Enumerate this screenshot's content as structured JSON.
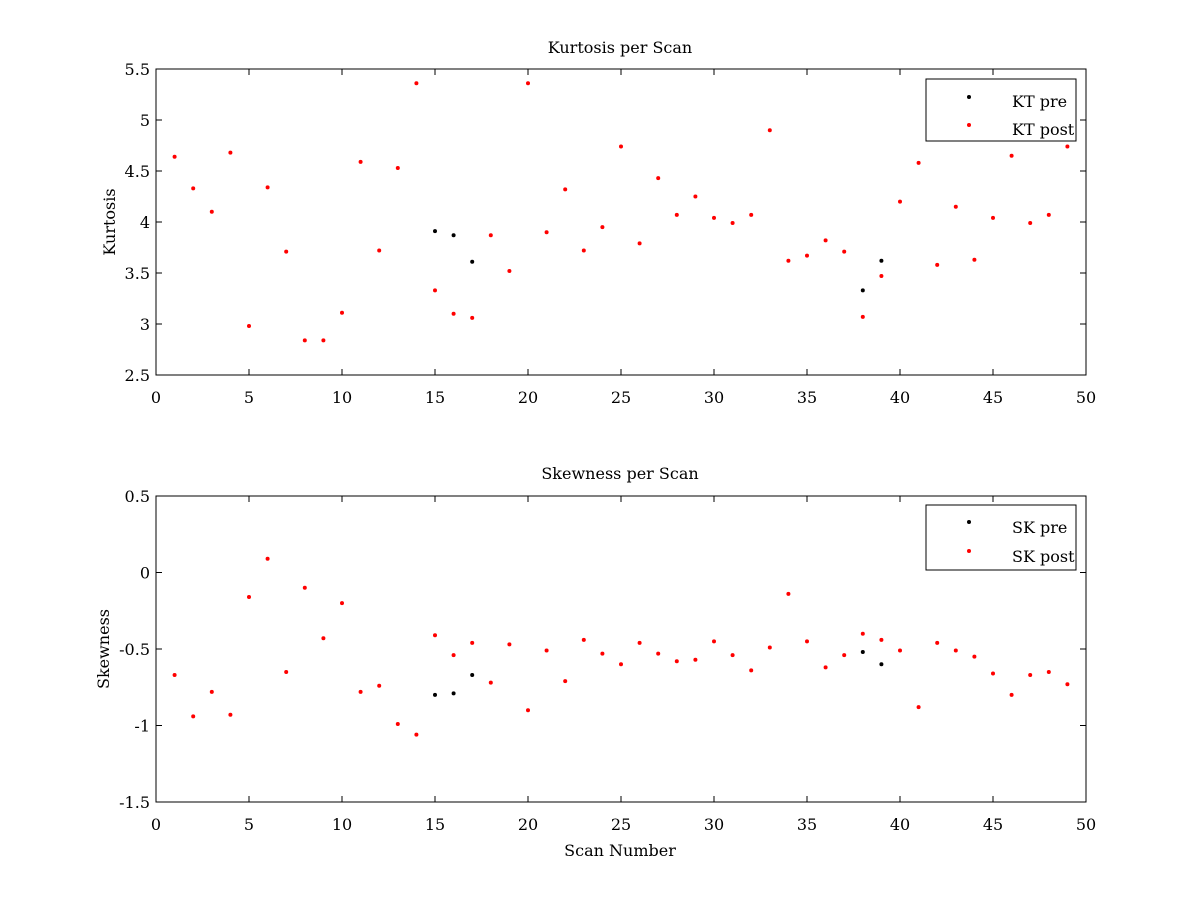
{
  "chart_data": [
    {
      "type": "scatter",
      "title": "Kurtosis per Scan",
      "xlabel": "",
      "ylabel": "Kurtosis",
      "xlim": [
        0,
        50
      ],
      "ylim": [
        2.5,
        5.5
      ],
      "xticks": [
        "0",
        "5",
        "10",
        "15",
        "20",
        "25",
        "30",
        "35",
        "40",
        "45",
        "50"
      ],
      "yticks": [
        "2.5",
        "3",
        "3.5",
        "4",
        "4.5",
        "5",
        "5.5"
      ],
      "legend_position": "top-right",
      "grid": false,
      "series": [
        {
          "name": "KT pre",
          "color": "#000000",
          "x": [
            15,
            16,
            17,
            38,
            39
          ],
          "y": [
            3.91,
            3.87,
            3.61,
            3.33,
            3.62
          ]
        },
        {
          "name": "KT post",
          "color": "#ff0000",
          "x": [
            1,
            2,
            3,
            4,
            5,
            6,
            7,
            8,
            9,
            10,
            11,
            12,
            13,
            14,
            15,
            16,
            17,
            18,
            19,
            20,
            21,
            22,
            23,
            24,
            25,
            26,
            27,
            28,
            29,
            30,
            31,
            32,
            33,
            34,
            35,
            36,
            37,
            38,
            39,
            40,
            41,
            42,
            43,
            44,
            45,
            46,
            47,
            48,
            49
          ],
          "y": [
            4.64,
            4.33,
            4.1,
            4.68,
            2.98,
            4.34,
            3.71,
            2.84,
            2.84,
            3.11,
            4.59,
            3.72,
            4.53,
            5.36,
            3.33,
            3.1,
            3.06,
            3.87,
            3.52,
            5.36,
            3.9,
            4.32,
            3.72,
            3.95,
            4.74,
            3.79,
            4.43,
            4.07,
            4.25,
            4.04,
            3.99,
            4.07,
            4.9,
            3.62,
            3.67,
            3.82,
            3.71,
            3.07,
            3.47,
            4.2,
            4.58,
            3.58,
            4.15,
            3.63,
            4.04,
            4.65,
            3.99,
            4.07,
            4.74
          ]
        }
      ]
    },
    {
      "type": "scatter",
      "title": "Skewness per Scan",
      "xlabel": "Scan Number",
      "ylabel": "Skewness",
      "xlim": [
        0,
        50
      ],
      "ylim": [
        -1.5,
        0.5
      ],
      "xticks": [
        "0",
        "5",
        "10",
        "15",
        "20",
        "25",
        "30",
        "35",
        "40",
        "45",
        "50"
      ],
      "yticks": [
        "-1.5",
        "-1",
        "-0.5",
        "0",
        "0.5"
      ],
      "legend_position": "top-right",
      "grid": false,
      "series": [
        {
          "name": "SK pre",
          "color": "#000000",
          "x": [
            15,
            16,
            17,
            38,
            39
          ],
          "y": [
            -0.8,
            -0.79,
            -0.67,
            -0.52,
            -0.6
          ]
        },
        {
          "name": "SK post",
          "color": "#ff0000",
          "x": [
            1,
            2,
            3,
            4,
            5,
            6,
            7,
            8,
            9,
            10,
            11,
            12,
            13,
            14,
            15,
            16,
            17,
            18,
            19,
            20,
            21,
            22,
            23,
            24,
            25,
            26,
            27,
            28,
            29,
            30,
            31,
            32,
            33,
            34,
            35,
            36,
            37,
            38,
            39,
            40,
            41,
            42,
            43,
            44,
            45,
            46,
            47,
            48,
            49
          ],
          "y": [
            -0.67,
            -0.94,
            -0.78,
            -0.93,
            -0.16,
            0.09,
            -0.65,
            -0.1,
            -0.43,
            -0.2,
            -0.78,
            -0.74,
            -0.99,
            -1.06,
            -0.41,
            -0.54,
            -0.46,
            -0.72,
            -0.47,
            -0.9,
            -0.51,
            -0.71,
            -0.44,
            -0.53,
            -0.6,
            -0.46,
            -0.53,
            -0.58,
            -0.57,
            -0.45,
            -0.54,
            -0.64,
            -0.49,
            -0.14,
            -0.45,
            -0.62,
            -0.54,
            -0.4,
            -0.44,
            -0.51,
            -0.88,
            -0.46,
            -0.51,
            -0.55,
            -0.66,
            -0.8,
            -0.67,
            -0.65,
            -0.73
          ]
        }
      ]
    }
  ]
}
